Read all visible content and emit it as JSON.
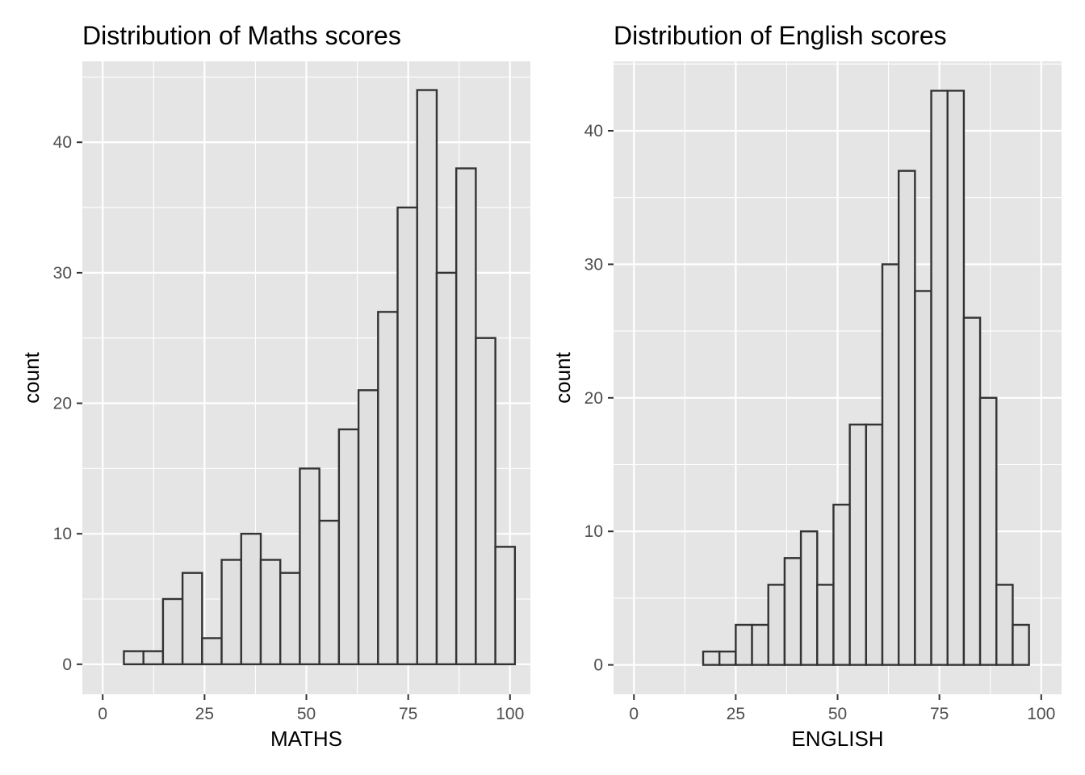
{
  "chart_data": [
    {
      "type": "bar",
      "title": "Distribution of Maths scores",
      "xlabel": "MATHS",
      "ylabel": "count",
      "xlim": [
        -5,
        105
      ],
      "ylim": [
        -2.3,
        46.2
      ],
      "x_ticks": [
        0,
        25,
        50,
        75,
        100
      ],
      "x_tick_labels": [
        "0",
        "25",
        "50",
        "75",
        "100"
      ],
      "y_ticks": [
        0,
        10,
        20,
        30,
        40
      ],
      "y_tick_labels": [
        "0",
        "10",
        "20",
        "30",
        "40"
      ],
      "grid": true,
      "bin_edges": [
        5.2,
        10,
        14.8,
        19.6,
        24.4,
        29.2,
        34,
        38.8,
        43.6,
        48.4,
        53.2,
        58,
        62.8,
        67.6,
        72.4,
        77.2,
        82,
        86.8,
        91.6,
        96.4,
        101.2
      ],
      "values": [
        1,
        1,
        5,
        7,
        2,
        8,
        10,
        8,
        7,
        15,
        11,
        18,
        21,
        27,
        35,
        44,
        30,
        38,
        25,
        9
      ]
    },
    {
      "type": "bar",
      "title": "Distribution of English scores",
      "xlabel": "ENGLISH",
      "ylabel": "count",
      "xlim": [
        -5,
        105
      ],
      "ylim": [
        -2.2,
        45.2
      ],
      "x_ticks": [
        0,
        25,
        50,
        75,
        100
      ],
      "x_tick_labels": [
        "0",
        "25",
        "50",
        "75",
        "100"
      ],
      "y_ticks": [
        0,
        10,
        20,
        30,
        40
      ],
      "y_tick_labels": [
        "0",
        "10",
        "20",
        "30",
        "40"
      ],
      "grid": true,
      "bin_edges": [
        17,
        21,
        25,
        29,
        33,
        37,
        41,
        45,
        49,
        53,
        57,
        61,
        65,
        69,
        73,
        77,
        81,
        85,
        89,
        93,
        97
      ],
      "values": [
        1,
        1,
        3,
        3,
        6,
        8,
        10,
        6,
        12,
        18,
        18,
        30,
        37,
        28,
        43,
        43,
        26,
        20,
        6,
        3
      ]
    }
  ]
}
